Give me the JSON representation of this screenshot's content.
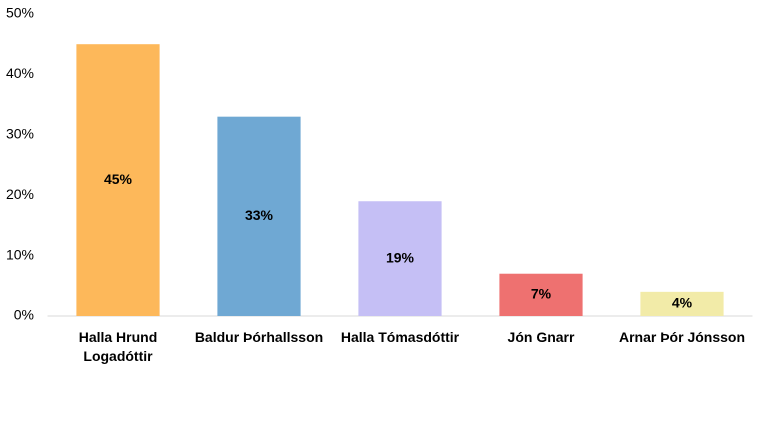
{
  "chart_data": {
    "type": "bar",
    "categories": [
      "Halla Hrund Logadóttir",
      "Baldur Þórhallsson",
      "Halla Tómasdóttir",
      "Jón Gnarr",
      "Arnar Þór Jónsson"
    ],
    "values": [
      45,
      33,
      19,
      7,
      4
    ],
    "value_labels": [
      "45%",
      "33%",
      "19%",
      "7%",
      "4%"
    ],
    "colors": [
      "#fdb85a",
      "#6fa8d3",
      "#c5bff5",
      "#ee7170",
      "#f2eba8"
    ],
    "ylim": [
      0,
      50
    ],
    "yticks": [
      {
        "value": 0,
        "label": "0%"
      },
      {
        "value": 10,
        "label": "10%"
      },
      {
        "value": 20,
        "label": "20%"
      },
      {
        "value": 30,
        "label": "30%"
      },
      {
        "value": 40,
        "label": "40%"
      },
      {
        "value": 50,
        "label": "50%"
      }
    ],
    "grid": false
  }
}
